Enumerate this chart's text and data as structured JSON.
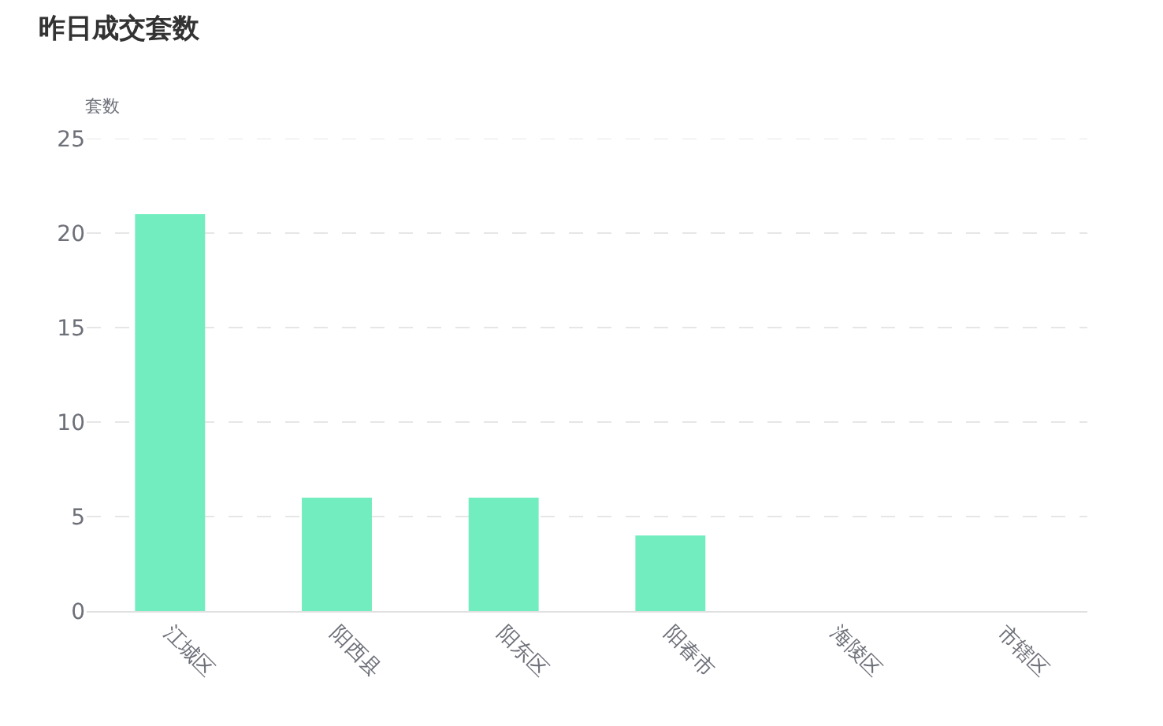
{
  "chart_data": {
    "type": "bar",
    "title": "昨日成交套数",
    "ylabel": "套数",
    "categories": [
      "江城区",
      "阳西县",
      "阳东区",
      "阳春市",
      "海陵区",
      "市辖区"
    ],
    "values": [
      21,
      6,
      6,
      4,
      0,
      0
    ],
    "color": "#72edc0",
    "ylim": [
      0,
      25
    ],
    "yticks": [
      0,
      5,
      10,
      15,
      20,
      25
    ],
    "grid": "y"
  }
}
